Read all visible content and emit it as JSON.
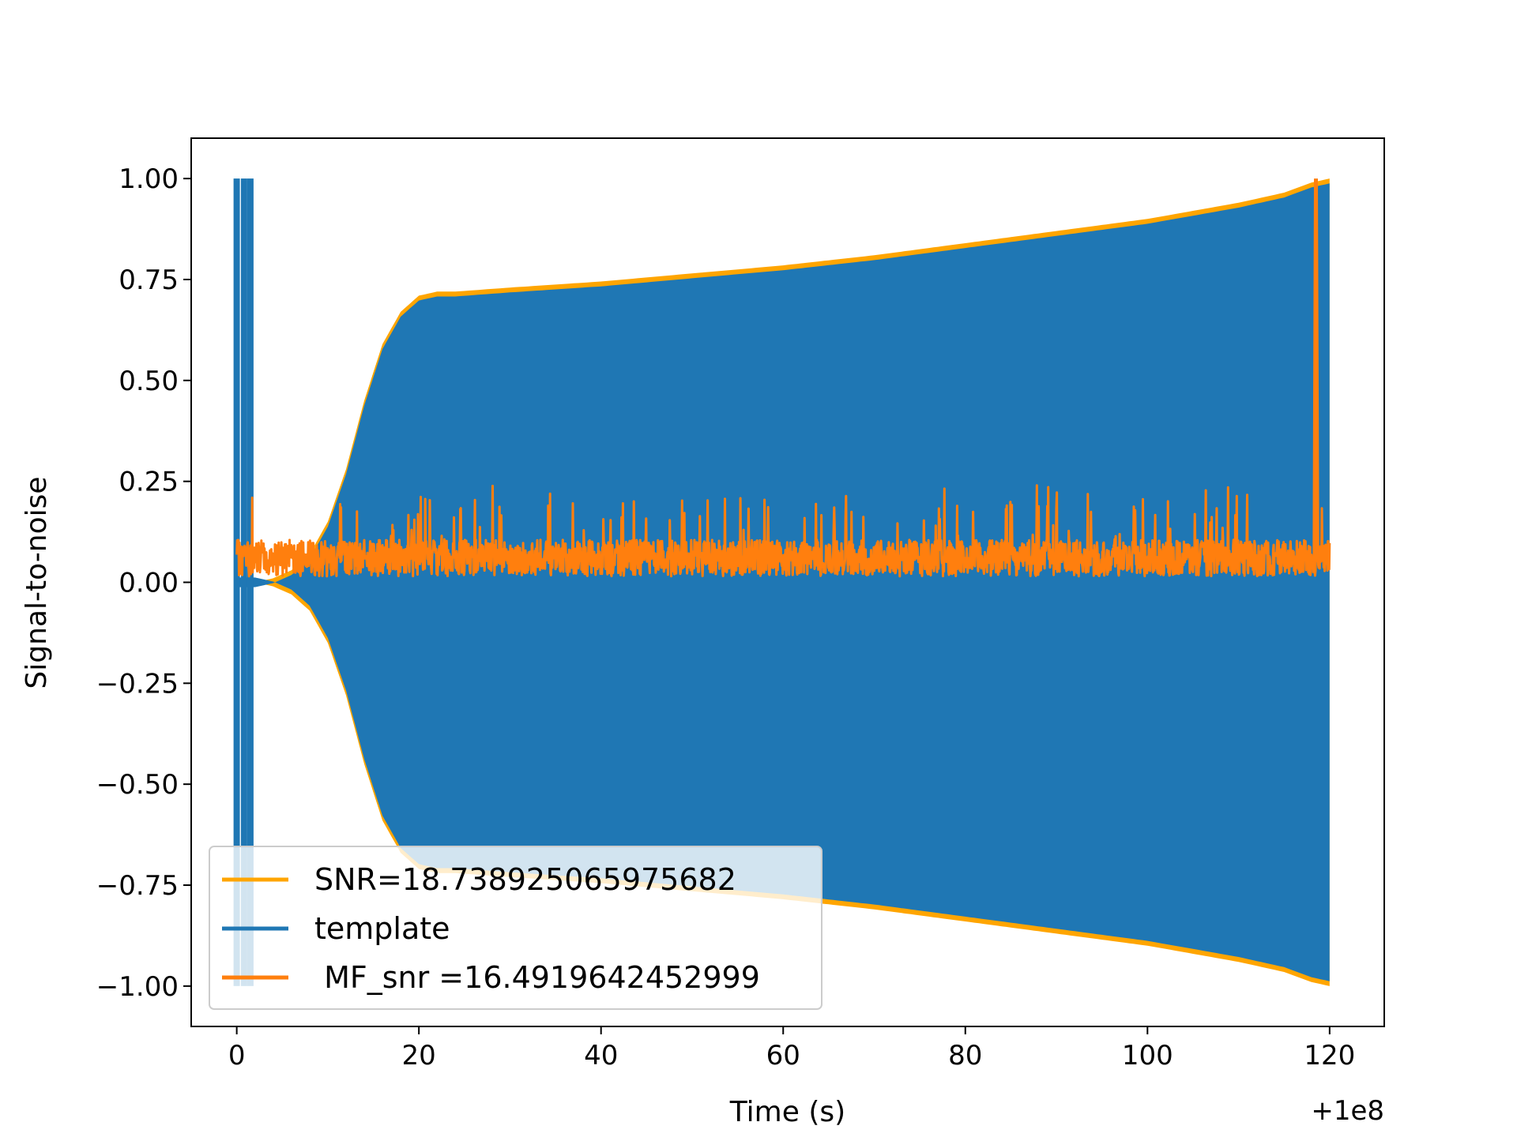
{
  "chart_data": {
    "type": "line",
    "title": "",
    "xlabel": "Time (s)",
    "ylabel": "Signal-to-noise",
    "x_offset_label": "+1e8",
    "xlim": [
      -5,
      126
    ],
    "ylim": [
      -1.1,
      1.1
    ],
    "x_ticks": [
      0,
      20,
      40,
      60,
      80,
      100,
      120
    ],
    "y_ticks": [
      1.0,
      0.75,
      0.5,
      0.25,
      0.0,
      -0.25,
      -0.5,
      -0.75,
      -1.0
    ],
    "x_tick_labels": [
      "0",
      "20",
      "40",
      "60",
      "80",
      "100",
      "120"
    ],
    "y_tick_labels": [
      "1.00",
      "0.75",
      "0.50",
      "0.25",
      "0.00",
      "−0.25",
      "−0.50",
      "−0.75",
      "−1.00"
    ],
    "grid": false,
    "legend_position": "lower-left",
    "series": [
      {
        "name": "SNR=18.738925065975682",
        "color": "#ffa500",
        "kind": "envelope",
        "x": [
          0,
          2,
          4,
          6,
          8,
          10,
          12,
          14,
          16,
          18,
          20,
          22,
          24,
          30,
          40,
          50,
          60,
          70,
          80,
          90,
          100,
          110,
          115,
          118,
          120
        ],
        "upper": [
          0.0,
          0.0,
          0.01,
          0.03,
          0.07,
          0.15,
          0.28,
          0.45,
          0.59,
          0.67,
          0.71,
          0.72,
          0.72,
          0.73,
          0.745,
          0.765,
          0.785,
          0.81,
          0.84,
          0.87,
          0.9,
          0.94,
          0.965,
          0.99,
          1.0
        ],
        "lower": [
          0.0,
          0.0,
          -0.01,
          -0.03,
          -0.07,
          -0.15,
          -0.28,
          -0.45,
          -0.59,
          -0.67,
          -0.71,
          -0.72,
          -0.72,
          -0.73,
          -0.745,
          -0.765,
          -0.785,
          -0.81,
          -0.84,
          -0.87,
          -0.9,
          -0.94,
          -0.965,
          -0.99,
          -1.0
        ]
      },
      {
        "name": "template",
        "color": "#1f77b4",
        "kind": "envelope",
        "x": [
          0,
          2,
          4,
          6,
          8,
          10,
          12,
          14,
          16,
          18,
          20,
          22,
          24,
          30,
          40,
          50,
          60,
          70,
          80,
          90,
          100,
          110,
          115,
          118,
          120
        ],
        "upper": [
          0.0,
          0.0,
          0.01,
          0.03,
          0.07,
          0.15,
          0.28,
          0.45,
          0.59,
          0.67,
          0.71,
          0.72,
          0.72,
          0.73,
          0.745,
          0.765,
          0.785,
          0.81,
          0.84,
          0.87,
          0.9,
          0.94,
          0.965,
          0.99,
          1.0
        ],
        "lower": [
          0.0,
          0.0,
          -0.01,
          -0.03,
          -0.07,
          -0.15,
          -0.28,
          -0.45,
          -0.59,
          -0.67,
          -0.71,
          -0.72,
          -0.72,
          -0.73,
          -0.745,
          -0.765,
          -0.785,
          -0.81,
          -0.84,
          -0.87,
          -0.9,
          -0.94,
          -0.965,
          -0.99,
          -1.0
        ],
        "spikes": [
          {
            "x": 0.0,
            "low": -1.0,
            "high": 1.0
          },
          {
            "x": 0.8,
            "low": -1.0,
            "high": 1.0
          },
          {
            "x": 1.5,
            "low": -1.0,
            "high": 1.0
          }
        ]
      },
      {
        "name": " MF_snr =16.4919642452999",
        "color": "#ff7f0e",
        "kind": "noise",
        "x_range": [
          0,
          120
        ],
        "baseline": 0.06,
        "typical_range": [
          0.0,
          0.2
        ],
        "peak": {
          "x": 118.5,
          "y": 1.0
        }
      }
    ]
  }
}
